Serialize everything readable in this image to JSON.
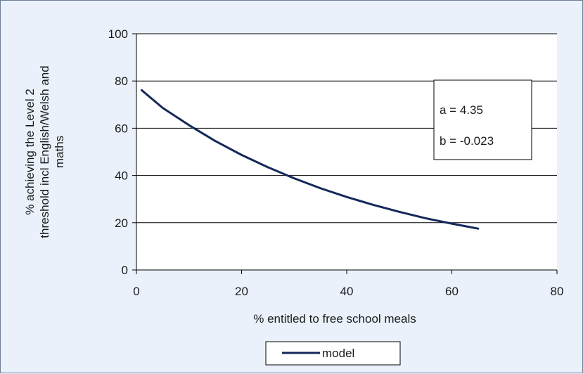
{
  "chart_data": {
    "type": "line",
    "title": "",
    "xlabel": "% entitled to free school meals",
    "ylabel_lines": [
      "% achieving the Level 2",
      "threshold incl English/Welsh and",
      "maths"
    ],
    "xlim": [
      0,
      80
    ],
    "ylim": [
      0,
      100
    ],
    "xticks": [
      "0",
      "20",
      "40",
      "60",
      "80"
    ],
    "yticks": [
      "0",
      "20",
      "40",
      "60",
      "80",
      "100"
    ],
    "grid": "horizontal",
    "legend_position": "bottom-center",
    "series": [
      {
        "name": "model",
        "color": "#14285a",
        "x": [
          1,
          5,
          10,
          15,
          20,
          25,
          30,
          35,
          40,
          45,
          50,
          55,
          60,
          65
        ],
        "y": [
          76.1,
          68.6,
          61.3,
          54.6,
          48.7,
          43.5,
          38.8,
          34.6,
          30.9,
          27.6,
          24.6,
          21.9,
          19.6,
          17.5
        ]
      }
    ],
    "annotation": {
      "a_text": "a = 4.35",
      "b_text": "b = -0.023"
    }
  }
}
